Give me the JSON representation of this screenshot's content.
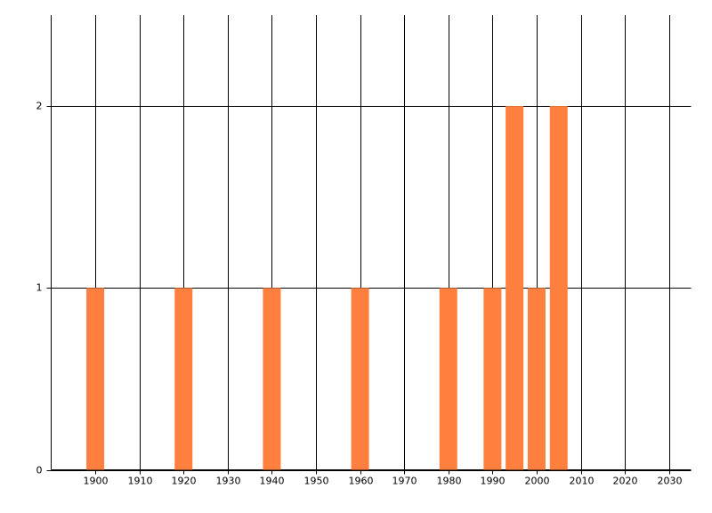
{
  "chart_data": {
    "type": "bar",
    "x": [
      1900,
      1920,
      1940,
      1960,
      1980,
      1990,
      1995,
      2000,
      2005
    ],
    "values": [
      1,
      1,
      1,
      1,
      1,
      1,
      2,
      1,
      2
    ],
    "color": "#ff7f3f",
    "xlim": [
      1890,
      2035
    ],
    "xticks": [
      1900,
      1910,
      1920,
      1930,
      1940,
      1950,
      1960,
      1970,
      1980,
      1990,
      2000,
      2010,
      2020,
      2030
    ],
    "ylim": [
      0,
      2.5
    ],
    "yticks": [
      0,
      1,
      2
    ],
    "grid": true
  }
}
